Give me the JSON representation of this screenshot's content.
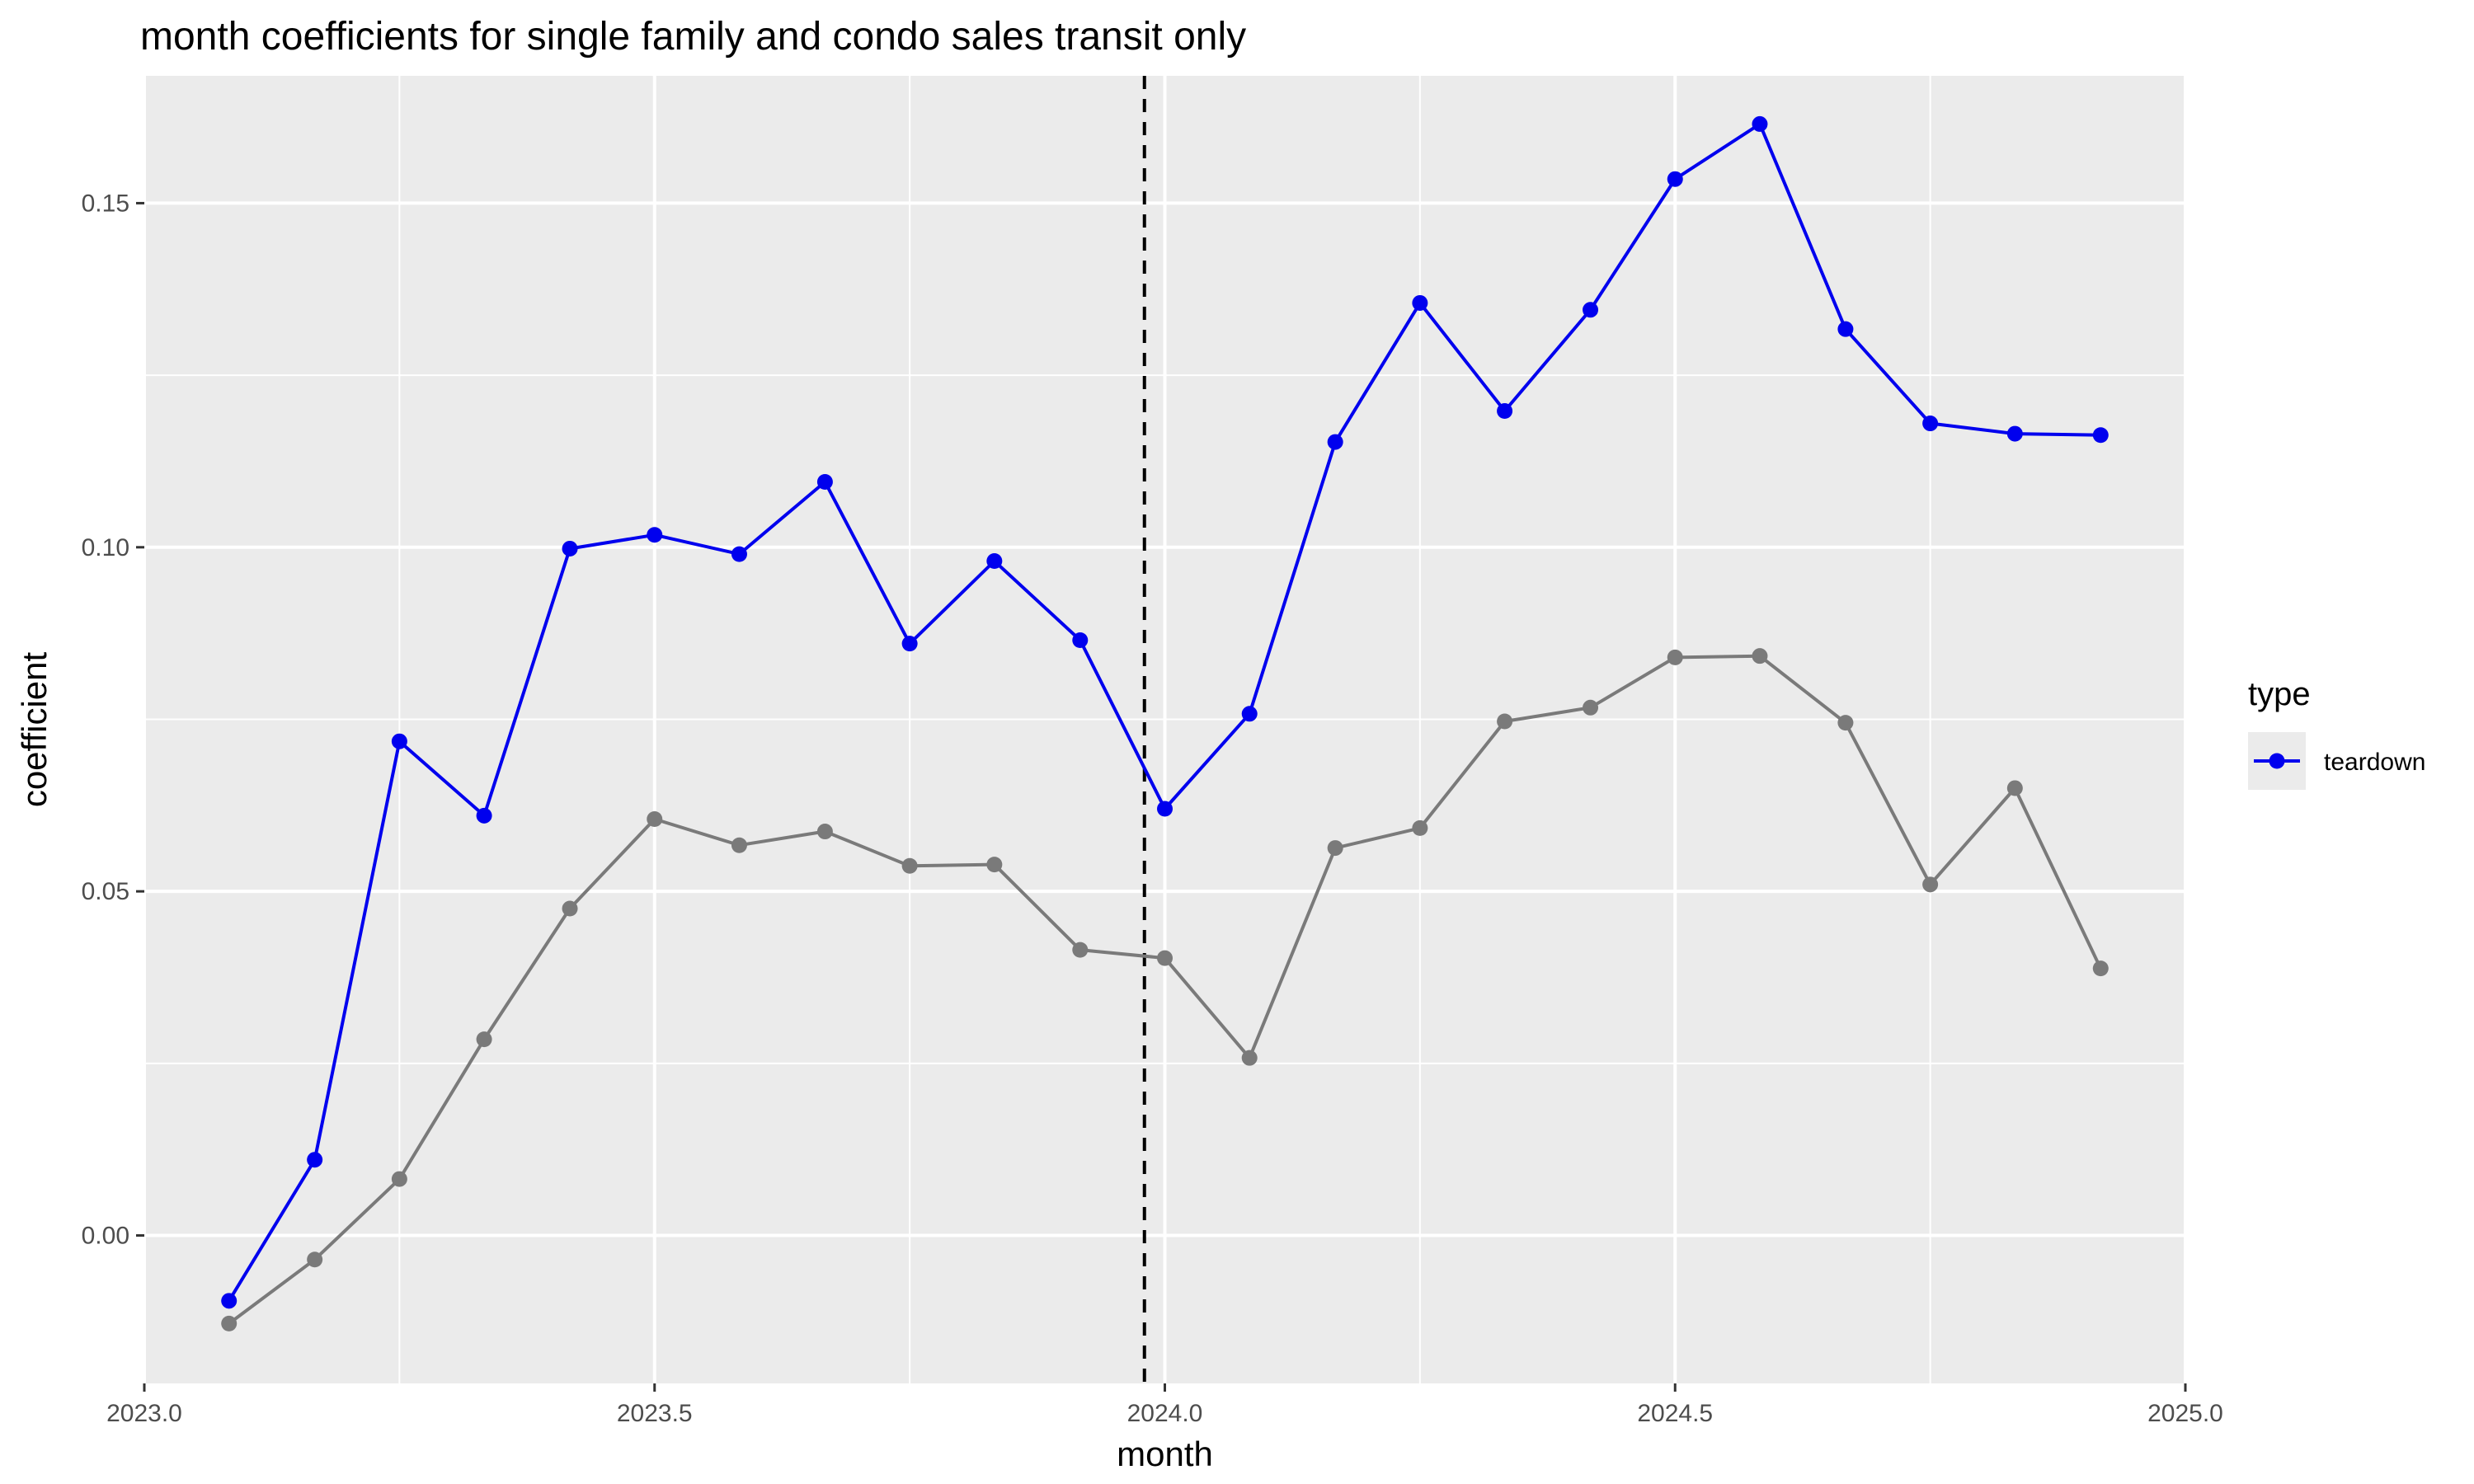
{
  "chart_data": {
    "type": "line",
    "title": "month coefficients for single family and condo sales transit only",
    "xlabel": "month",
    "ylabel": "coefficient",
    "xlim": [
      2023.0,
      2025.0
    ],
    "ylim": [
      -0.0215,
      0.1685
    ],
    "x_ticks": [
      2023.0,
      2023.5,
      2024.0,
      2024.5,
      2025.0
    ],
    "x_tick_labels": [
      "2023.0",
      "2023.5",
      "2024.0",
      "2024.5",
      "2025.0"
    ],
    "y_ticks": [
      0.0,
      0.05,
      0.1,
      0.15
    ],
    "y_tick_labels": [
      "0.00",
      "0.05",
      "0.10",
      "0.15"
    ],
    "grid": true,
    "vline": {
      "x": 2023.98,
      "style": "dashed",
      "color": "#000000"
    },
    "legend": {
      "title": "type",
      "placement": "right",
      "entries": [
        "teardown"
      ]
    },
    "series": [
      {
        "name": "teardown",
        "color": "#0000ee",
        "x": [
          2023.083,
          2023.167,
          2023.25,
          2023.333,
          2023.417,
          2023.5,
          2023.583,
          2023.667,
          2023.75,
          2023.833,
          2023.917,
          2024.0,
          2024.083,
          2024.167,
          2024.25,
          2024.333,
          2024.417,
          2024.5,
          2024.583,
          2024.667,
          2024.75,
          2024.833,
          2024.917
        ],
        "values": [
          -0.0095,
          0.011,
          0.0718,
          0.061,
          0.0998,
          0.1018,
          0.099,
          0.1095,
          0.086,
          0.098,
          0.0865,
          0.062,
          0.0758,
          0.1153,
          0.1355,
          0.1198,
          0.1345,
          0.1535,
          0.1615,
          0.1317,
          0.118,
          0.1165,
          0.1163
        ]
      },
      {
        "color": "#7a7a7a",
        "x": [
          2023.083,
          2023.167,
          2023.25,
          2023.333,
          2023.417,
          2023.5,
          2023.583,
          2023.667,
          2023.75,
          2023.833,
          2023.917,
          2024.0,
          2024.083,
          2024.167,
          2024.25,
          2024.333,
          2024.417,
          2024.5,
          2024.583,
          2024.667,
          2024.75,
          2024.833,
          2024.917
        ],
        "values": [
          -0.0128,
          -0.0035,
          0.0082,
          0.0285,
          0.0475,
          0.0605,
          0.0567,
          0.0587,
          0.0537,
          0.0539,
          0.0415,
          0.0403,
          0.0258,
          0.0563,
          0.0592,
          0.0747,
          0.0767,
          0.084,
          0.0842,
          0.0745,
          0.051,
          0.065,
          0.0388
        ]
      }
    ]
  }
}
